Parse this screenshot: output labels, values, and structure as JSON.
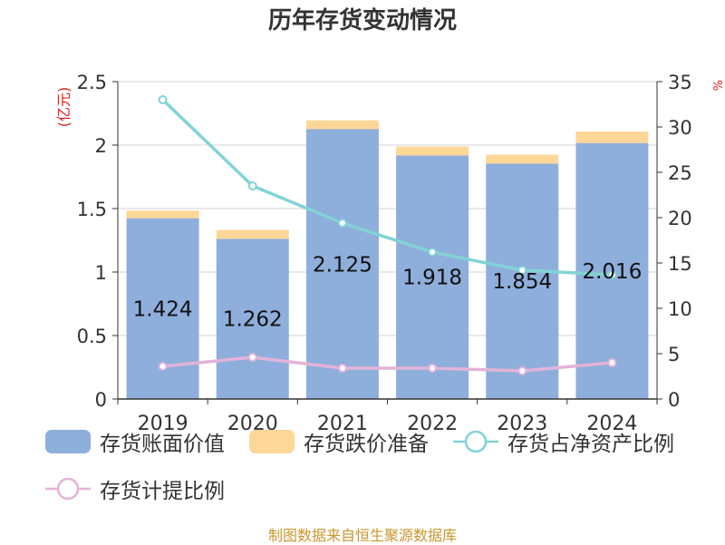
{
  "chart_data": {
    "type": "bar",
    "title": "历年存货变动情况",
    "y_left_unit": "(亿元)",
    "y_right_unit": "%",
    "categories": [
      "2019",
      "2020",
      "2021",
      "2022",
      "2023",
      "2024"
    ],
    "ylim_left": [
      0,
      2.5
    ],
    "yticks_left": [
      "0",
      "0.5",
      "1",
      "1.5",
      "2",
      "2.5"
    ],
    "ylim_right": [
      0,
      35
    ],
    "yticks_right": [
      "0",
      "5",
      "10",
      "15",
      "20",
      "25",
      "30",
      "35"
    ],
    "grid": true,
    "legend_position": "bottom",
    "series": [
      {
        "name": "存货账面价值",
        "kind": "bar",
        "color": "#8eaedb",
        "values": [
          1.424,
          1.262,
          2.125,
          1.918,
          1.854,
          2.016
        ],
        "labels": [
          "1.424",
          "1.262",
          "2.125",
          "1.918",
          "1.854",
          "2.016"
        ]
      },
      {
        "name": "存货跌价准备",
        "kind": "bar-stack",
        "color": "#fcd797",
        "values": [
          0.06,
          0.07,
          0.07,
          0.07,
          0.07,
          0.09
        ]
      },
      {
        "name": "存货占净资产比例",
        "kind": "line",
        "axis": "right",
        "color": "#82d3d7",
        "values": [
          33.0,
          23.5,
          19.4,
          16.2,
          14.2,
          13.7
        ]
      },
      {
        "name": "存货计提比例",
        "kind": "line",
        "axis": "right",
        "color": "#e3b3d8",
        "values": [
          3.6,
          4.6,
          3.4,
          3.4,
          3.1,
          4.0
        ]
      }
    ]
  },
  "source_note": "制图数据来自恒生聚源数据库"
}
